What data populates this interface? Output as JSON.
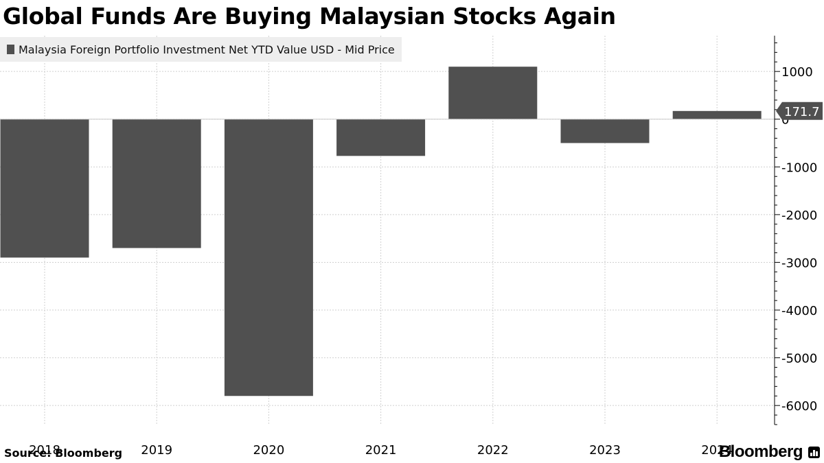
{
  "title": "Global Funds Are Buying Malaysian Stocks Again",
  "source": "Source: Bloomberg",
  "brand": "Bloomberg",
  "colors": {
    "bar": "#505050",
    "grid": "#cfcfcf",
    "legend_bg": "#eeeeee",
    "callout": "#505050",
    "callout_text": "#ffffff"
  },
  "chart_data": {
    "type": "bar",
    "title": "Global Funds Are Buying Malaysian Stocks Again",
    "categories": [
      "2018",
      "2019",
      "2020",
      "2021",
      "2022",
      "2023",
      "2024"
    ],
    "series": [
      {
        "name": "Malaysia Foreign Portfolio Investment Net YTD Value USD - Mid Price",
        "values": [
          -2900,
          -2700,
          -5800,
          -770,
          1100,
          -500,
          171.7
        ]
      }
    ],
    "y_ticks": [
      1000,
      0,
      -1000,
      -2000,
      -3000,
      -4000,
      -5000,
      -6000
    ],
    "ylim": [
      -6400,
      1750
    ],
    "last_value_label": "171.7",
    "xlabel": "",
    "ylabel": "",
    "grid": true,
    "y_axis_position": "right",
    "legend_position": "top-left"
  }
}
